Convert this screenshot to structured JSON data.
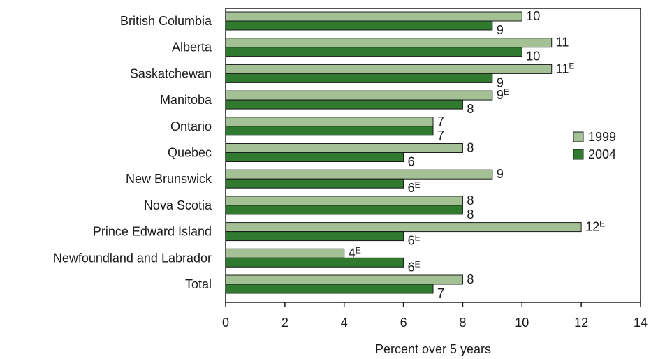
{
  "chart_data": {
    "type": "bar",
    "orientation": "horizontal",
    "categories": [
      "British Columbia",
      "Alberta",
      "Saskatchewan",
      "Manitoba",
      "Ontario",
      "Quebec",
      "New Brunswick",
      "Nova Scotia",
      "Prince Edward Island",
      "Newfoundland and Labrador",
      "Total"
    ],
    "series": [
      {
        "name": "1999",
        "color": "#a3c195",
        "values": [
          10,
          11,
          11,
          9,
          7,
          8,
          9,
          8,
          12,
          4,
          8
        ],
        "flags": [
          "",
          "",
          "E",
          "E",
          "",
          "",
          "",
          "",
          "E",
          "E",
          ""
        ]
      },
      {
        "name": "2004",
        "color": "#2f7a2f",
        "values": [
          9,
          10,
          9,
          8,
          7,
          6,
          6,
          8,
          6,
          6,
          7
        ],
        "flags": [
          "",
          "",
          "",
          "",
          "",
          "",
          "E",
          "",
          "E",
          "E",
          ""
        ]
      }
    ],
    "xlabel": "Percent over 5 years",
    "ylabel": "",
    "title": "",
    "xlim": [
      0,
      14
    ],
    "xticks": [
      0,
      2,
      4,
      6,
      8,
      10,
      12,
      14
    ],
    "grid": false,
    "legend": "right"
  }
}
